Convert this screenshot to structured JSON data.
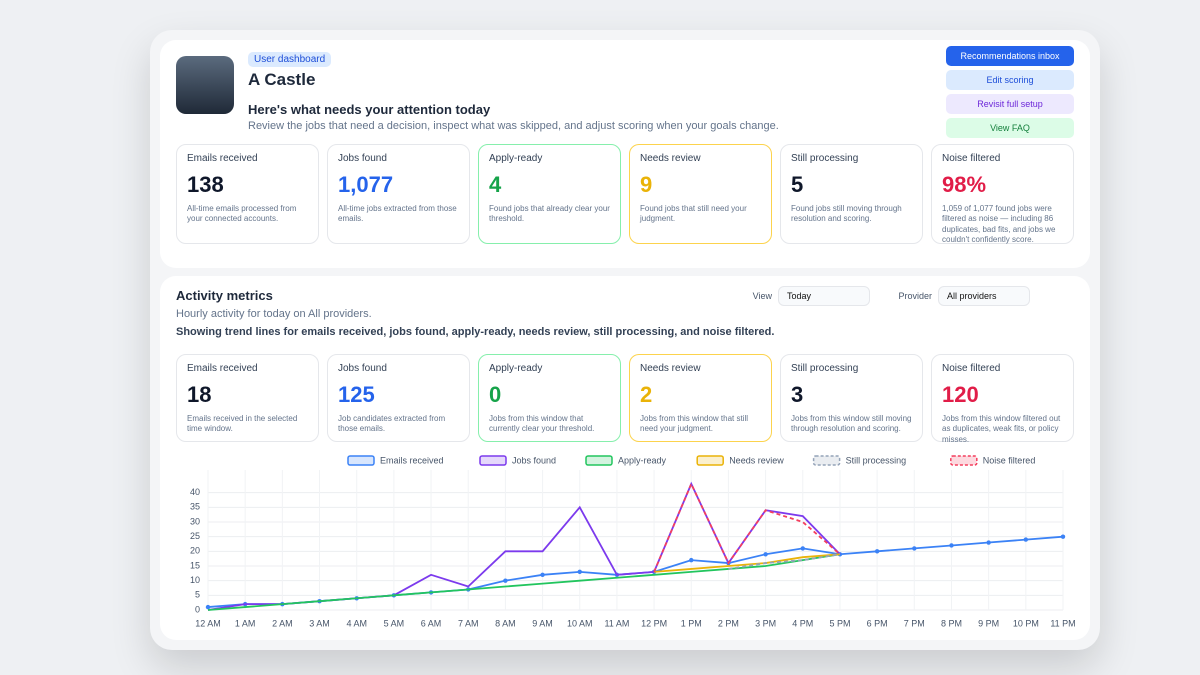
{
  "header": {
    "badge": "User dashboard",
    "name": "A Castle",
    "buttons": [
      "Recommendations inbox",
      "Edit scoring",
      "Revisit full setup",
      "View FAQ"
    ],
    "attention_title": "Here's what needs your attention today",
    "attention_subtitle": "Review the jobs that need a decision, inspect what was skipped, and adjust scoring when your goals change."
  },
  "summary_cards": [
    {
      "label": "Emails received",
      "value": "138",
      "note": "All-time emails processed from your connected accounts."
    },
    {
      "label": "Jobs found",
      "value": "1,077",
      "note": "All-time jobs extracted from those emails."
    },
    {
      "label": "Apply-ready",
      "value": "4",
      "note": "Found jobs that already clear your threshold."
    },
    {
      "label": "Needs review",
      "value": "9",
      "note": "Found jobs that still need your judgment."
    },
    {
      "label": "Still processing",
      "value": "5",
      "note": "Found jobs still moving through resolution and scoring."
    },
    {
      "label": "Noise filtered",
      "value": "98%",
      "note": "1,059 of 1,077 found jobs were filtered as noise — including 86 duplicates, bad fits, and jobs we couldn't confidently score."
    }
  ],
  "activity": {
    "title": "Activity metrics",
    "description": "Hourly activity for today on All providers.",
    "trend_note": "Showing trend lines for emails received, jobs found, apply-ready, needs review, still processing, and noise filtered.",
    "view_label": "View",
    "view_value": "Today",
    "provider_label": "Provider",
    "provider_value": "All providers",
    "cards": [
      {
        "label": "Emails received",
        "value": "18",
        "note": "Emails received in the selected time window."
      },
      {
        "label": "Jobs found",
        "value": "125",
        "note": "Job candidates extracted from those emails."
      },
      {
        "label": "Apply-ready",
        "value": "0",
        "note": "Jobs from this window that currently clear your threshold."
      },
      {
        "label": "Needs review",
        "value": "2",
        "note": "Jobs from this window that still need your judgment."
      },
      {
        "label": "Still processing",
        "value": "3",
        "note": "Jobs from this window still moving through resolution and scoring."
      },
      {
        "label": "Noise filtered",
        "value": "120",
        "note": "Jobs from this window filtered out as duplicates, weak fits, or policy misses."
      }
    ]
  },
  "chart_data": {
    "type": "line",
    "categories": [
      "12 AM",
      "1 AM",
      "2 AM",
      "3 AM",
      "4 AM",
      "5 AM",
      "6 AM",
      "7 AM",
      "8 AM",
      "9 AM",
      "10 AM",
      "11 AM",
      "12 PM",
      "1 PM",
      "2 PM",
      "3 PM",
      "4 PM",
      "5 PM",
      "6 PM",
      "7 PM",
      "8 PM",
      "9 PM",
      "10 PM",
      "11 PM"
    ],
    "ylim": [
      0,
      45
    ],
    "yticks": [
      0,
      5,
      10,
      15,
      20,
      25,
      30,
      35,
      40
    ],
    "grid": true,
    "series": [
      {
        "name": "Emails received",
        "color": "#3b82f6",
        "dashed": false,
        "values": [
          1,
          2,
          2,
          3,
          4,
          5,
          6,
          7,
          10,
          12,
          13,
          12,
          13,
          17,
          16,
          19,
          21,
          19,
          20,
          21,
          22,
          23,
          24,
          25
        ]
      },
      {
        "name": "Jobs found",
        "color": "#7c3aed",
        "dashed": false,
        "values": [
          0,
          2,
          2,
          3,
          4,
          5,
          12,
          8,
          20,
          20,
          35,
          12,
          13,
          43,
          16,
          34,
          32,
          19,
          null,
          null,
          null,
          null,
          null,
          null
        ]
      },
      {
        "name": "Apply-ready",
        "color": "#22c55e",
        "dashed": false,
        "values": [
          0,
          1,
          2,
          3,
          4,
          5,
          6,
          7,
          8,
          9,
          10,
          11,
          12,
          13,
          14,
          15,
          17,
          19,
          null,
          null,
          null,
          null,
          null,
          null
        ]
      },
      {
        "name": "Needs review",
        "color": "#eab308",
        "dashed": false,
        "values": [
          null,
          null,
          null,
          null,
          null,
          null,
          null,
          null,
          null,
          null,
          null,
          null,
          13,
          14,
          15,
          16,
          18,
          19,
          null,
          null,
          null,
          null,
          null,
          null
        ]
      },
      {
        "name": "Still processing",
        "color": "#94a3b8",
        "dashed": true,
        "values": [
          null,
          null,
          null,
          null,
          null,
          null,
          null,
          null,
          null,
          null,
          null,
          null,
          null,
          null,
          14,
          16,
          17,
          19,
          null,
          null,
          null,
          null,
          null,
          null
        ]
      },
      {
        "name": "Noise filtered",
        "color": "#f43f5e",
        "dashed": true,
        "values": [
          null,
          null,
          null,
          null,
          null,
          null,
          null,
          null,
          null,
          null,
          null,
          null,
          13,
          43,
          16,
          34,
          30,
          19,
          null,
          null,
          null,
          null,
          null,
          null
        ]
      }
    ]
  }
}
